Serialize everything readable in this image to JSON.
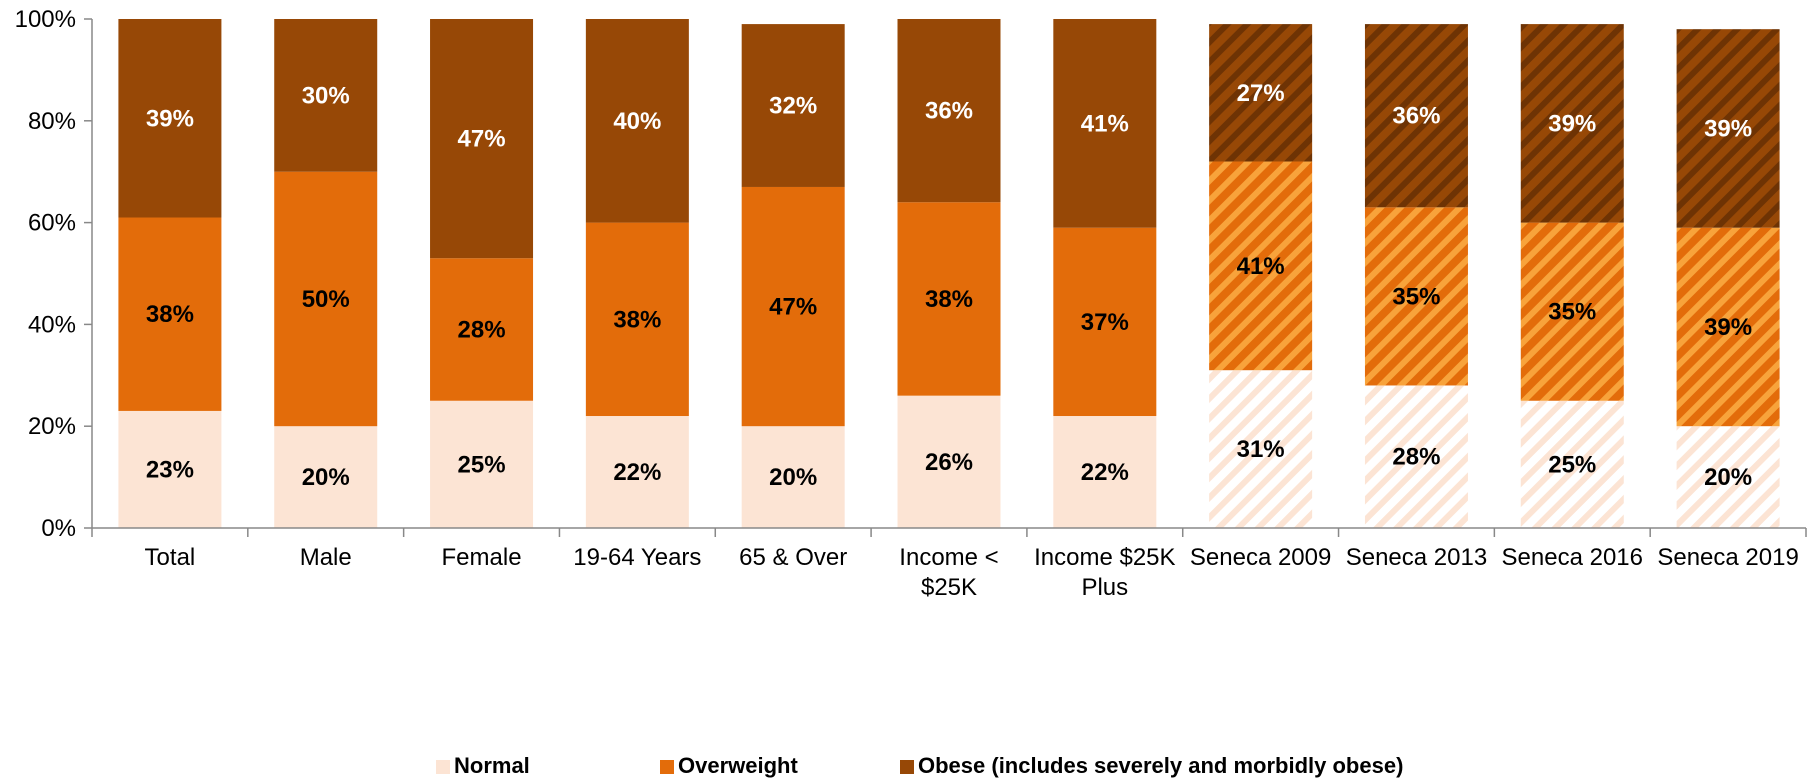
{
  "chart_data": {
    "type": "bar",
    "stacked": true,
    "categories": [
      [
        "Total"
      ],
      [
        "Male"
      ],
      [
        "Female"
      ],
      [
        "19-64 Years"
      ],
      [
        "65 & Over"
      ],
      [
        "Income <",
        "$25K"
      ],
      [
        "Income $25K",
        "Plus"
      ],
      [
        "Seneca 2009"
      ],
      [
        "Seneca 2013"
      ],
      [
        "Seneca 2016"
      ],
      [
        "Seneca 2019"
      ]
    ],
    "hatched_categories": [
      7,
      8,
      9,
      10
    ],
    "series": [
      {
        "name": "Normal",
        "color": "#FCE4D4",
        "label_color": "#000000",
        "values": [
          23,
          20,
          25,
          22,
          20,
          26,
          22,
          31,
          28,
          25,
          20
        ]
      },
      {
        "name": "Overweight",
        "color": "#E36C0A",
        "label_color": "#000000",
        "values": [
          38,
          50,
          28,
          38,
          47,
          38,
          37,
          41,
          35,
          35,
          39
        ]
      },
      {
        "name": "Obese (includes severely and morbidly obese)",
        "color": "#974806",
        "label_color": "#ffffff",
        "values": [
          39,
          30,
          47,
          40,
          32,
          36,
          41,
          27,
          36,
          39,
          39
        ]
      }
    ],
    "y_ticks": [
      "0%",
      "20%",
      "40%",
      "60%",
      "80%",
      "100%"
    ],
    "ylim": [
      0,
      100
    ],
    "grid": false,
    "legend_position": "bottom",
    "title": "",
    "xlabel": "",
    "ylabel": ""
  }
}
